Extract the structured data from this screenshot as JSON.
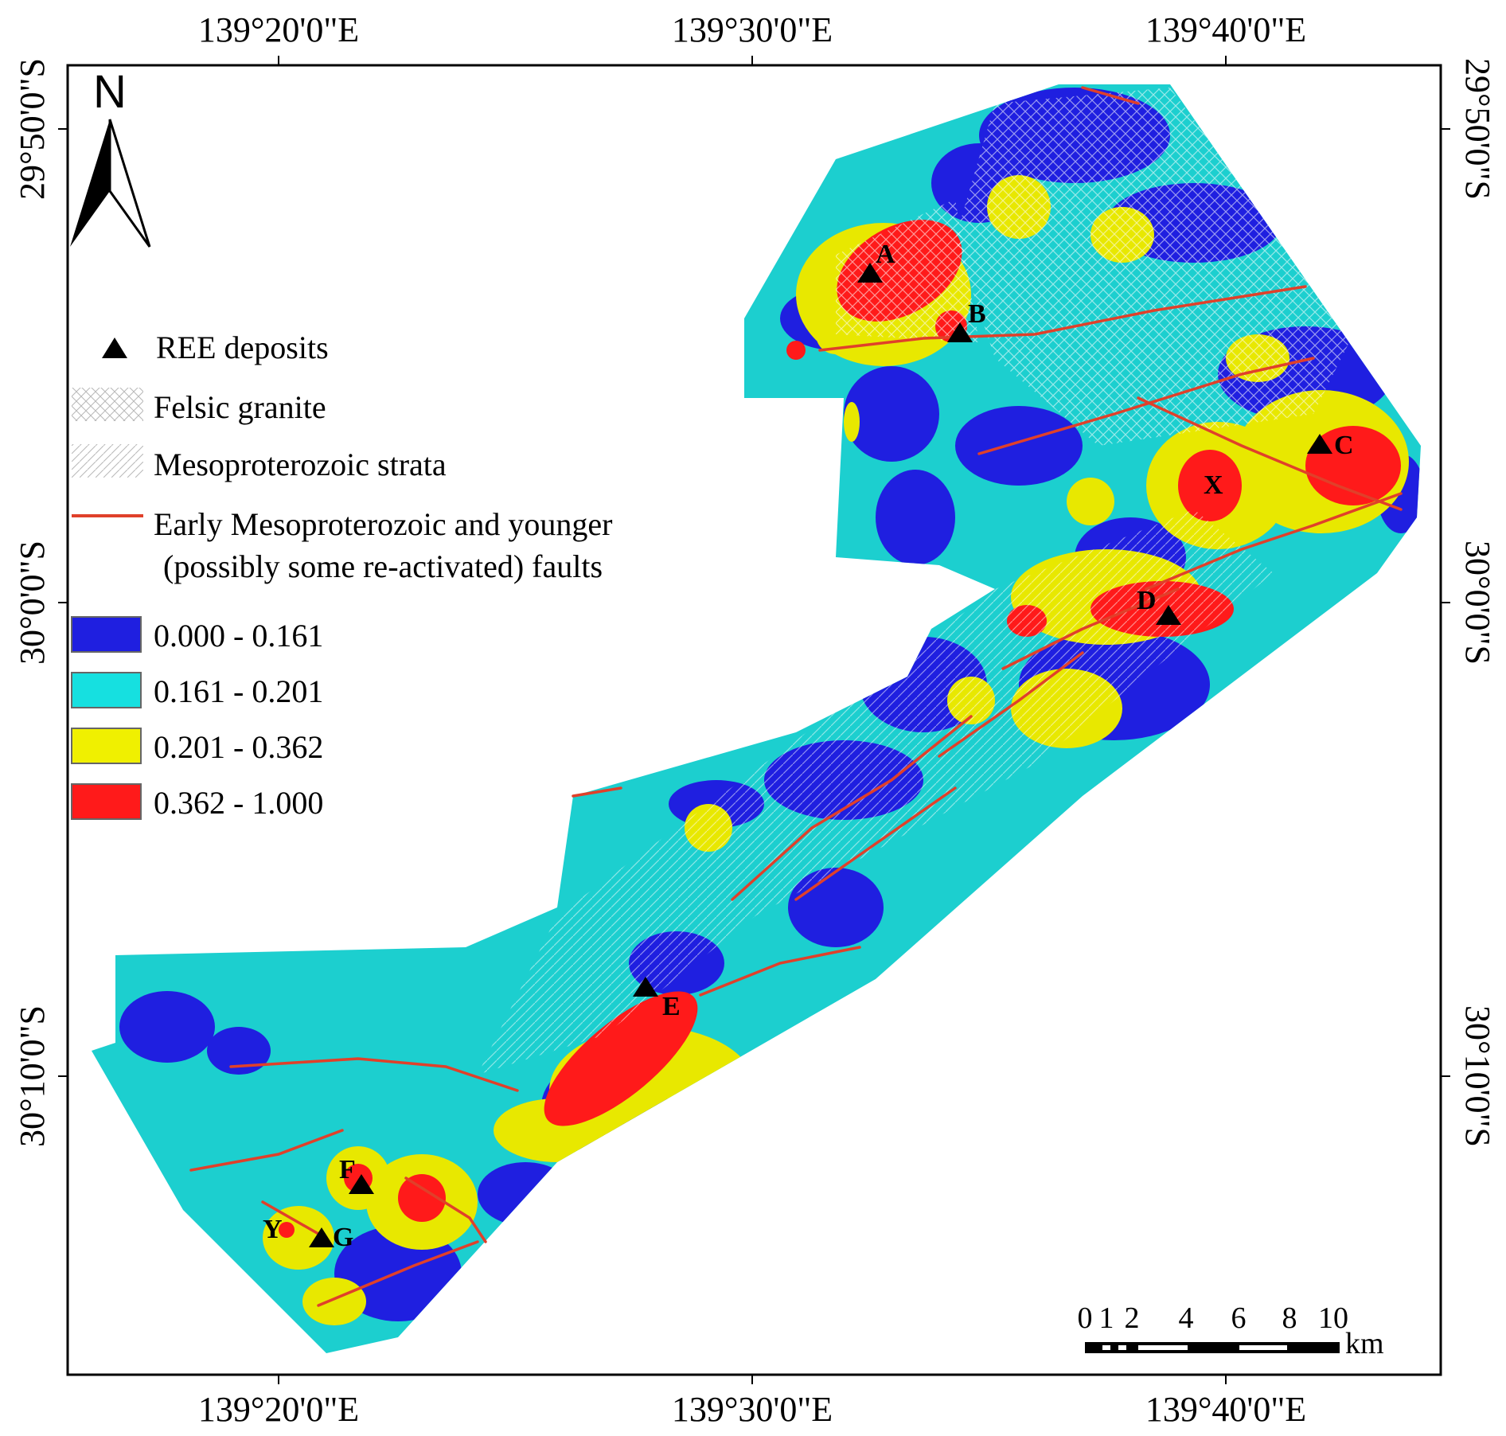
{
  "map": {
    "top_ticks": [
      "139°20'0\"E",
      "139°30'0\"E",
      "139°40'0\"E"
    ],
    "bottom_ticks": [
      "139°20'0\"E",
      "139°30'0\"E",
      "139°40'0\"E"
    ],
    "left_ticks": [
      "29°50'0\"S",
      "30°0'0\"S",
      "30°10'0\"S"
    ],
    "right_ticks": [
      "29°50'0\"S",
      "30°0'0\"S",
      "30°10'0\"S"
    ],
    "north_label": "N"
  },
  "legend": {
    "deposits": "REE deposits",
    "granite": "Felsic granite",
    "strata": "Mesoproterozoic strata",
    "faults_line1": "Early Mesoproterozoic and younger",
    "faults_line2": "(possibly some re-activated) faults",
    "classes": [
      {
        "label": "0.000 - 0.161",
        "color": "#1f1fe0"
      },
      {
        "label": "0.161 - 0.201",
        "color": "#16e0e0"
      },
      {
        "label": "0.201 - 0.362",
        "color": "#f0f000"
      },
      {
        "label": "0.362 - 1.000",
        "color": "#ff1a1a"
      }
    ]
  },
  "deposits": [
    "A",
    "B",
    "C",
    "D",
    "E",
    "F",
    "G"
  ],
  "targets": [
    "X",
    "Y"
  ],
  "scale_bar": {
    "ticks": [
      "0",
      "1",
      "2",
      "4",
      "6",
      "8",
      "10"
    ],
    "unit": "km"
  },
  "colors": {
    "fault": "#e0402a",
    "frame": "#000000"
  }
}
